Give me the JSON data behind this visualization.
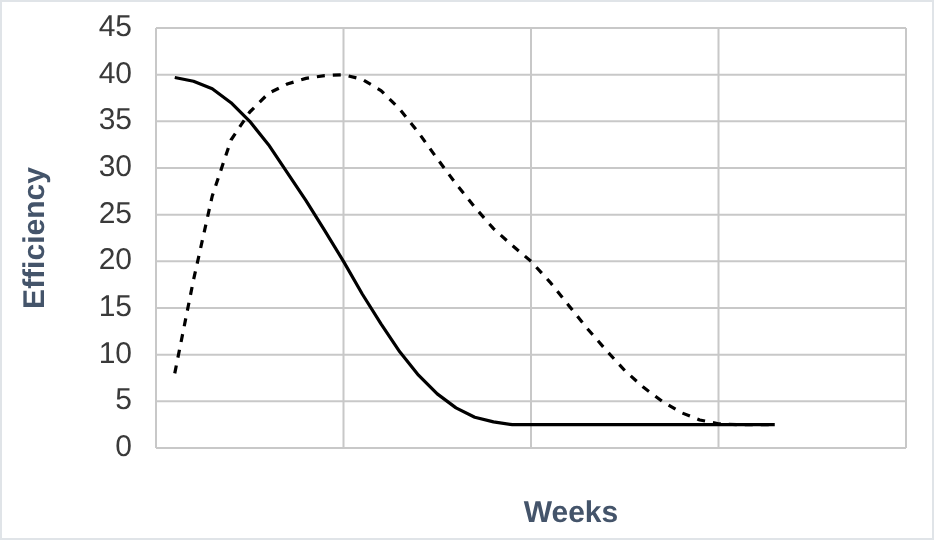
{
  "chart_data": {
    "type": "line",
    "xlabel": "Weeks",
    "ylabel": "Efficiency",
    "categories": [
      null,
      null,
      null,
      null,
      null,
      null,
      null,
      null,
      null,
      null,
      null,
      null,
      null,
      null,
      null,
      null,
      null,
      null,
      null,
      null,
      null,
      null,
      null,
      null,
      null,
      null,
      null,
      null,
      null,
      null,
      null,
      null,
      null
    ],
    "ylim": [
      0,
      45
    ],
    "yticks": [
      0,
      5,
      10,
      15,
      20,
      25,
      30,
      35,
      40,
      45
    ],
    "grid": true,
    "series": [
      {
        "color": "#000000",
        "line_style": "solid",
        "values": [
          39.7,
          39.3,
          38.5,
          37,
          35,
          32.5,
          29.5,
          26.5,
          23.3,
          20,
          16.5,
          13.3,
          10.3,
          7.8,
          5.8,
          4.3,
          3.3,
          2.8,
          2.5,
          2.5,
          2.5,
          2.5,
          2.5,
          2.5,
          2.5,
          2.5,
          2.5,
          2.5,
          2.5,
          2.5,
          2.5,
          2.5,
          2.5
        ]
      },
      {
        "color": "#000000",
        "line_style": "dashed",
        "values": [
          8,
          18,
          27,
          33,
          36,
          38,
          39,
          39.6,
          39.9,
          40,
          39.5,
          38.3,
          36.3,
          33.8,
          31,
          28.3,
          25.8,
          23.5,
          21.7,
          20,
          17.8,
          15.3,
          12.8,
          10.5,
          8.3,
          6.5,
          5,
          3.8,
          3,
          2.6,
          2.5,
          2.5,
          2.5
        ]
      }
    ]
  }
}
